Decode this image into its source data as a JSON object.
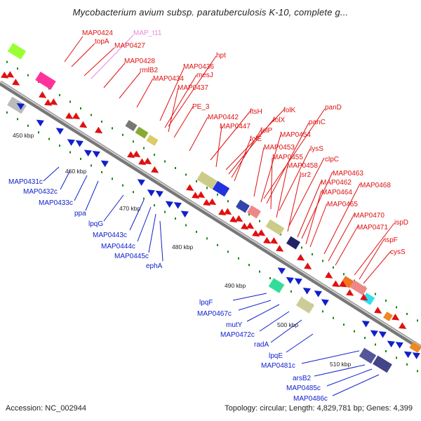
{
  "title": "Mycobacterium avium subsp. paratuberculosis K-10, complete g...",
  "footer": {
    "accession": "Accession: NC_002944",
    "summary": "Topology: circular; Length: 4,829,781 bp; Genes: 4,399"
  },
  "colors": {
    "forward": "#e01010",
    "reverse": "#1020cc",
    "rna": "#e889d8",
    "backbone": "#888888",
    "tick": "#118811"
  },
  "scale_labels": [
    "450 kbp",
    "460 kbp",
    "470 kbp",
    "480 kbp",
    "490 kbp",
    "500 kbp",
    "510 kbp"
  ],
  "forward_genes": [
    "MAP0424",
    "topA",
    "MAP_t11",
    "MAP0427",
    "MAP0428",
    "rmlB2",
    "hpt",
    "MAP0436",
    "MAP0434",
    "mesJ",
    "MAP0437",
    "PE_3",
    "ftsH",
    "folK",
    "MAP0442",
    "folX",
    "MAP0447",
    "folP",
    "folE",
    "panD",
    "panC",
    "MAP0454",
    "MAP0453",
    "lysS",
    "MAP0455",
    "clpC",
    "MAP0458",
    "lsr2",
    "MAP0463",
    "MAP0462",
    "MAP0468",
    "MAP0464",
    "MAP0465",
    "MAP0470",
    "ispD",
    "MAP0471",
    "ispF",
    "cysS"
  ],
  "reverse_genes": [
    "MAP0431c",
    "MAP0432c",
    "MAP0433c",
    "ppa",
    "lpqG",
    "MAP0443c",
    "MAP0444c",
    "MAP0445c",
    "ephA",
    "lpqF",
    "MAP0467c",
    "mutY",
    "MAP0472c",
    "radA",
    "lpqE",
    "MAP0481c",
    "arsB2",
    "MAP0485c",
    "MAP0486c"
  ]
}
